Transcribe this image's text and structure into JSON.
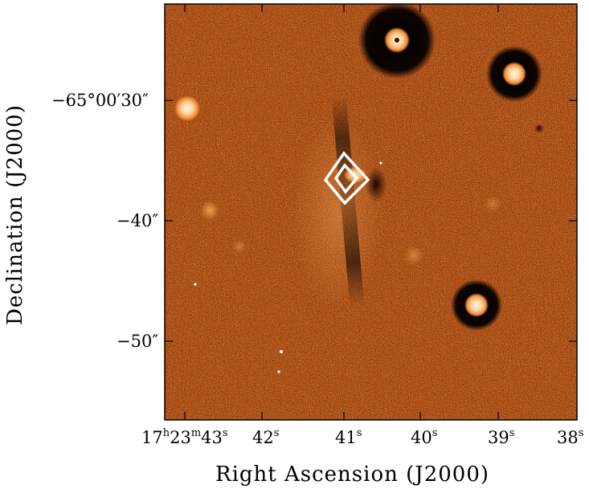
{
  "figure": {
    "xlabel": "Right Ascension (J2000)",
    "ylabel": "Declination (J2000)",
    "x_ticks": [
      {
        "h": "17",
        "m": "23",
        "s": "43"
      },
      {
        "s": "42"
      },
      {
        "s": "41"
      },
      {
        "s": "40"
      },
      {
        "s": "39"
      },
      {
        "s": "38"
      }
    ],
    "y_ticks": [
      "−65°00′30″",
      "−40″",
      "−50″"
    ],
    "colors": {
      "background": "#cc5a1c",
      "frame": "#000000",
      "contour": "#ffffff",
      "star_core": "#ffe9c2",
      "halo": "#0a0300"
    }
  }
}
